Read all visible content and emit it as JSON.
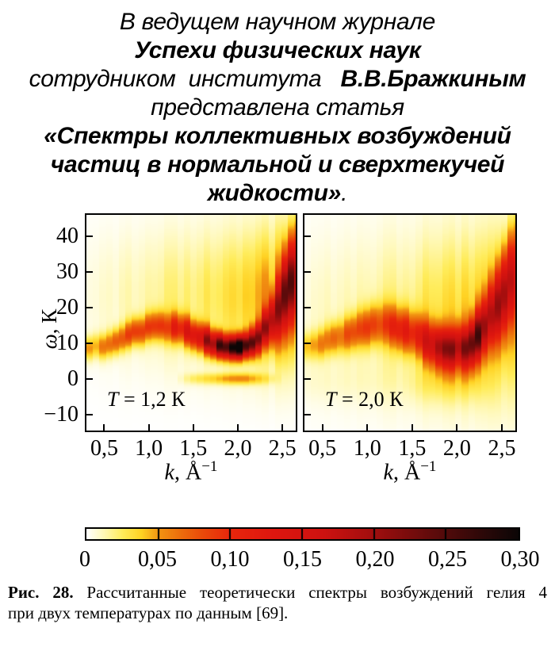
{
  "header": {
    "lines": [
      [
        {
          "t": "В ведущем научном журнале",
          "b": false
        }
      ],
      [
        {
          "t": "Успехи физических наук",
          "b": true
        }
      ],
      [
        {
          "t": "сотрудником  института   ",
          "b": false
        },
        {
          "t": "В.В.Бражкиным",
          "b": true
        }
      ],
      [
        {
          "t": "представлена статья",
          "b": false
        }
      ],
      [
        {
          "t": "«Спектры коллективных возбуждений",
          "b": true
        }
      ],
      [
        {
          "t": "частиц в нормальной и сверхтекучей",
          "b": true
        }
      ],
      [
        {
          "t": "жидкости»",
          "b": true
        },
        {
          "t": ".",
          "b": false
        }
      ]
    ]
  },
  "figure": {
    "ylabel_var": "ω",
    "ylabel_rest": ", К",
    "panels": [
      {
        "id": "t12",
        "label_var": "T",
        "label_rest": " = 1,2 К",
        "xlabel_var": "k",
        "xlabel_unit": ", Å",
        "xlabel_exp": "−1",
        "xtick_labels": [
          "0,5",
          "1,0",
          "1,5",
          "2,0",
          "2,5"
        ],
        "ytick_labels": [
          "40",
          "30",
          "20",
          "10",
          "0",
          "−10"
        ]
      },
      {
        "id": "t20",
        "label_var": "T",
        "label_rest": " = 2,0 К",
        "xlabel_var": "k",
        "xlabel_unit": ", Å",
        "xlabel_exp": "−1",
        "xtick_labels": [
          "0,5",
          "1,0",
          "1,5",
          "2,0",
          "2,5"
        ],
        "ytick_labels": []
      }
    ],
    "colorbar_labels": [
      "0",
      "0,05",
      "0,10",
      "0,15",
      "0,20",
      "0,25",
      "0,30"
    ]
  },
  "caption": {
    "number": "Рис. 28.",
    "line1_rest": " Рассчитанные теоретически спектры возбуждений гелия 4",
    "line2": "при двух температурах по данным [69]."
  },
  "chart_data": [
    {
      "type": "heatmap",
      "title": "T = 1,2 К",
      "temperature_K": 1.2,
      "xlabel": "k, Å⁻¹",
      "ylabel": "ω, К",
      "x_range": [
        0.3,
        2.65
      ],
      "y_range": [
        -14.5,
        46.0
      ],
      "xticks": [
        0.5,
        1.0,
        1.5,
        2.0,
        2.5
      ],
      "yticks": [
        40,
        30,
        20,
        10,
        0,
        -10
      ],
      "intensity_range": [
        0,
        0.3
      ],
      "k_bin_width": 0.073,
      "dispersion": {
        "k": [
          0.3,
          0.45,
          0.6,
          0.8,
          1.0,
          1.2,
          1.4,
          1.55,
          1.7,
          1.8,
          1.9,
          2.0,
          2.1,
          2.2,
          2.3,
          2.4,
          2.5,
          2.65
        ],
        "omega": [
          8.0,
          9.0,
          10.5,
          12.8,
          14.2,
          14.8,
          13.8,
          12.0,
          10.3,
          9.3,
          8.7,
          8.6,
          9.2,
          10.8,
          13.5,
          17.0,
          22.0,
          30.0
        ],
        "sigma": [
          2.2,
          2.3,
          2.4,
          2.5,
          2.6,
          2.7,
          2.7,
          2.6,
          2.4,
          2.2,
          2.1,
          2.1,
          2.2,
          2.6,
          3.2,
          4.5,
          6.5,
          8.0
        ],
        "amp": [
          0.04,
          0.05,
          0.06,
          0.07,
          0.07,
          0.08,
          0.11,
          0.14,
          0.19,
          0.24,
          0.29,
          0.3,
          0.26,
          0.2,
          0.17,
          0.18,
          0.2,
          0.18
        ]
      },
      "broad_background": {
        "center": 23,
        "sigma": 13,
        "k": [
          0.3,
          0.6,
          1.0,
          1.4,
          1.8,
          2.2,
          2.35,
          2.5,
          2.65
        ],
        "amp": [
          0.004,
          0.008,
          0.015,
          0.02,
          0.025,
          0.035,
          0.05,
          0.055,
          0.05
        ]
      },
      "elastic_line": {
        "center": 0,
        "sigma": 1.1,
        "k": [
          1.3,
          1.5,
          1.7,
          1.9,
          2.05,
          2.2,
          2.35,
          2.5
        ],
        "amp": [
          0.0,
          0.02,
          0.03,
          0.045,
          0.05,
          0.035,
          0.015,
          0.0
        ]
      }
    },
    {
      "type": "heatmap",
      "title": "T = 2,0 К",
      "temperature_K": 2.0,
      "xlabel": "k, Å⁻¹",
      "ylabel": "ω, К",
      "x_range": [
        0.3,
        2.65
      ],
      "y_range": [
        -14.5,
        46.0
      ],
      "xticks": [
        0.5,
        1.0,
        1.5,
        2.0,
        2.5
      ],
      "yticks": [
        40,
        30,
        20,
        10,
        0,
        -10
      ],
      "intensity_range": [
        0,
        0.3
      ],
      "k_bin_width": 0.073,
      "dispersion": {
        "k": [
          0.3,
          0.45,
          0.6,
          0.8,
          1.0,
          1.2,
          1.4,
          1.55,
          1.7,
          1.8,
          1.9,
          2.0,
          2.1,
          2.2,
          2.3,
          2.4,
          2.5,
          2.65
        ],
        "omega": [
          8.5,
          9.5,
          11.0,
          13.0,
          14.5,
          15.0,
          14.0,
          12.3,
          10.3,
          9.2,
          8.6,
          8.6,
          9.0,
          10.5,
          14.0,
          18.5,
          23.0,
          30.0
        ],
        "sigma": [
          2.6,
          2.7,
          2.9,
          3.2,
          3.5,
          3.7,
          3.8,
          3.8,
          3.8,
          3.8,
          3.8,
          3.9,
          4.0,
          4.5,
          5.0,
          6.0,
          7.0,
          8.5
        ],
        "amp": [
          0.035,
          0.045,
          0.055,
          0.065,
          0.07,
          0.075,
          0.09,
          0.11,
          0.14,
          0.16,
          0.17,
          0.17,
          0.17,
          0.19,
          0.2,
          0.16,
          0.14,
          0.13
        ]
      },
      "broad_background": {
        "center": 18,
        "sigma": 16,
        "k": [
          0.3,
          0.6,
          1.0,
          1.4,
          1.8,
          2.2,
          2.35,
          2.5,
          2.65
        ],
        "amp": [
          0.005,
          0.01,
          0.015,
          0.02,
          0.03,
          0.04,
          0.05,
          0.05,
          0.045
        ]
      },
      "elastic_line": {
        "center": -1,
        "sigma": 4,
        "k": [
          1.4,
          1.6,
          1.9,
          2.1,
          2.3,
          2.5
        ],
        "amp": [
          0.004,
          0.012,
          0.018,
          0.015,
          0.007,
          0.0
        ]
      }
    },
    {
      "type": "colorbar",
      "orientation": "horizontal",
      "range": [
        0,
        0.3
      ],
      "ticks": [
        0,
        0.05,
        0.1,
        0.15,
        0.2,
        0.25,
        0.3
      ],
      "tick_labels": [
        "0",
        "0,05",
        "0,10",
        "0,15",
        "0,20",
        "0,25",
        "0,30"
      ],
      "colormap_stops": [
        [
          0.0,
          255,
          255,
          255
        ],
        [
          0.012,
          255,
          248,
          180
        ],
        [
          0.025,
          255,
          236,
          90
        ],
        [
          0.038,
          255,
          210,
          35
        ],
        [
          0.05,
          242,
          148,
          18
        ],
        [
          0.065,
          236,
          110,
          12
        ],
        [
          0.08,
          234,
          75,
          10
        ],
        [
          0.1,
          232,
          38,
          12
        ],
        [
          0.13,
          222,
          22,
          15
        ],
        [
          0.165,
          205,
          18,
          16
        ],
        [
          0.2,
          160,
          14,
          14
        ],
        [
          0.24,
          96,
          11,
          11
        ],
        [
          0.275,
          45,
          8,
          8
        ],
        [
          0.3,
          12,
          6,
          6
        ]
      ]
    }
  ]
}
